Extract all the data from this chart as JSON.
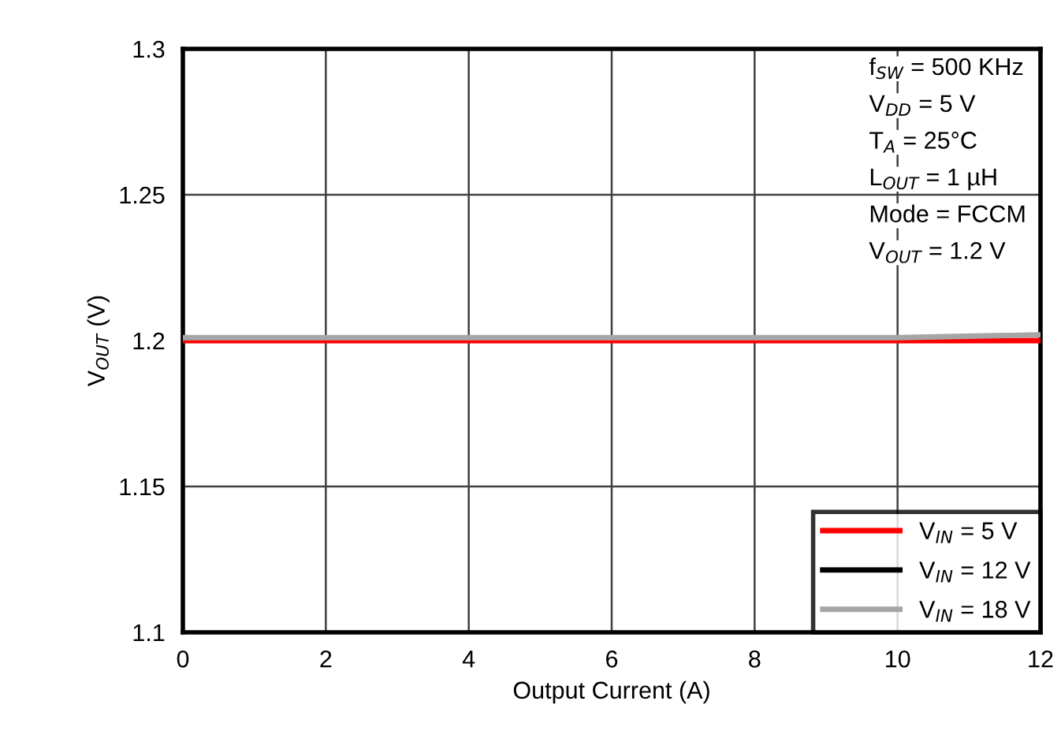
{
  "chart_data": {
    "type": "line",
    "xlabel": "Output Current (A)",
    "ylabel": "V$_{OUT}$ (V)",
    "x": [
      0,
      2,
      4,
      6,
      8,
      10,
      12
    ],
    "series": [
      {
        "name": "V$_{IN}$ = 5 V",
        "color": "#ff0000",
        "values": [
          1.2,
          1.2,
          1.2,
          1.2,
          1.2,
          1.2,
          1.2
        ]
      },
      {
        "name": "V$_{IN}$ = 12 V",
        "color": "#000000",
        "values": [
          null,
          null,
          null,
          null,
          null,
          null,
          null
        ]
      },
      {
        "name": "V$_{IN}$ = 18 V",
        "color": "#a6a6a6",
        "values": [
          1.201,
          1.201,
          1.201,
          1.201,
          1.201,
          1.201,
          1.202
        ]
      }
    ],
    "xlim": [
      0,
      12
    ],
    "xticks": [
      0,
      2,
      4,
      6,
      8,
      10,
      12
    ],
    "ylim": [
      1.1,
      1.3
    ],
    "yticks": [
      1.1,
      1.15,
      1.2,
      1.25,
      1.3
    ],
    "grid": true,
    "legend": "bottom right",
    "marker": "none",
    "line_style": "solid",
    "annotations": [
      "f$_{SW}$ = 500 KHz",
      "V$_{DD}$ = 5 V",
      "T$_{A}$ = 25°C",
      "L$_{OUT}$ = 1 µH",
      "Mode = FCCM",
      "V$_{OUT}$ = 1.2 V"
    ]
  }
}
